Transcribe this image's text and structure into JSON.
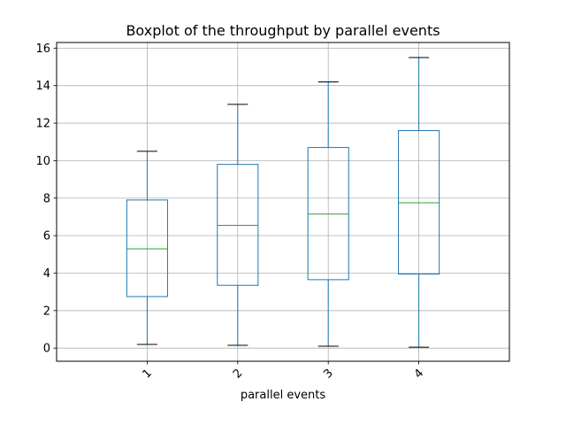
{
  "chart_data": {
    "type": "boxplot",
    "title": "Boxplot of the throughput by parallel events",
    "xlabel": "parallel events",
    "ylabel": "",
    "categories": [
      "1",
      "2",
      "3",
      "4"
    ],
    "yticks": [
      0,
      2,
      4,
      6,
      8,
      10,
      12,
      14,
      16
    ],
    "ylim": [
      -0.7,
      16.3
    ],
    "grid": true,
    "boxes": [
      {
        "category": "1",
        "whisker_low": 0.2,
        "q1": 2.75,
        "median": 5.3,
        "q3": 7.9,
        "whisker_high": 10.5
      },
      {
        "category": "2",
        "whisker_low": 0.15,
        "q1": 3.35,
        "median": 6.55,
        "q3": 9.8,
        "whisker_high": 13.0
      },
      {
        "category": "3",
        "whisker_low": 0.1,
        "q1": 3.65,
        "median": 7.15,
        "q3": 10.7,
        "whisker_high": 14.2
      },
      {
        "category": "4",
        "whisker_low": 0.05,
        "q1": 3.95,
        "median": 7.75,
        "q3": 11.6,
        "whisker_high": 15.5
      }
    ],
    "colors": {
      "box": "#1f77b4",
      "median": "#2ca02c",
      "whisker_cap": "#000000",
      "grid": "#b0b0b0"
    }
  }
}
